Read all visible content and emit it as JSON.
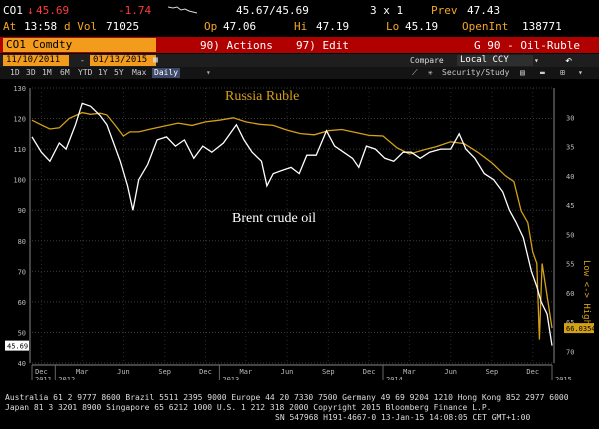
{
  "header": {
    "ticker": "CO1",
    "last": "45.69",
    "change": "-1.74",
    "time_label": "At",
    "time": "13:58",
    "vol_label": "d Vol",
    "volume": "71025",
    "bid_ask": "45.67/45.69",
    "size": "3 x 1",
    "prev_label": "Prev",
    "prev": "47.43",
    "open_label": "Op",
    "open": "47.06",
    "high_label": "Hi",
    "high": "47.19",
    "low_label": "Lo",
    "low": "45.19",
    "oi_label": "OpenInt",
    "open_interest": "138771"
  },
  "toolbar": {
    "security": "CO1 Comdty",
    "actions": "90) Actions",
    "edit": "97) Edit",
    "chart_name": "G 90 - Oil-Ruble"
  },
  "toolbar2": {
    "start_date": "11/10/2011",
    "end_date": "01/13/2015",
    "compare_label": "Compare",
    "compare_value": "Local CCY"
  },
  "timeframes": [
    "1D",
    "3D",
    "1M",
    "6M",
    "YTD",
    "1Y",
    "5Y",
    "Max",
    "Daily"
  ],
  "active_timeframe": "Daily",
  "tools": {
    "security_study": "Security/Study"
  },
  "chart_data": {
    "type": "line",
    "x_range": [
      "2011-11-10",
      "2015-01-13"
    ],
    "left_axis": {
      "ticks": [
        130,
        120,
        110,
        100,
        90,
        80,
        70,
        60,
        50,
        40
      ],
      "range": [
        40,
        130
      ]
    },
    "right_axis": {
      "label": "Low <-> High",
      "inverted": true,
      "ticks": [
        30,
        35,
        40,
        45,
        50,
        55,
        60,
        65,
        70
      ],
      "range": [
        25,
        72
      ]
    },
    "x_ticks_month": [
      "Dec",
      "Mar",
      "Jun",
      "Sep",
      "Dec",
      "Mar",
      "Jun",
      "Sep",
      "Dec",
      "Mar",
      "Jun",
      "Sep",
      "Dec"
    ],
    "x_ticks_year": [
      "2011",
      "2012",
      "2013",
      "2014",
      "2015"
    ],
    "series": [
      {
        "name": "Brent crude oil",
        "color": "#ffffff",
        "axis": "left",
        "last_value": "45.69",
        "values": [
          [
            "2011-11-10",
            114
          ],
          [
            "2011-12-01",
            109
          ],
          [
            "2011-12-20",
            106
          ],
          [
            "2012-01-10",
            112
          ],
          [
            "2012-01-25",
            110
          ],
          [
            "2012-02-15",
            118
          ],
          [
            "2012-03-01",
            125
          ],
          [
            "2012-03-20",
            124
          ],
          [
            "2012-04-10",
            121
          ],
          [
            "2012-04-25",
            118
          ],
          [
            "2012-05-10",
            112
          ],
          [
            "2012-05-25",
            106
          ],
          [
            "2012-06-10",
            98
          ],
          [
            "2012-06-22",
            90
          ],
          [
            "2012-07-05",
            100
          ],
          [
            "2012-07-25",
            105
          ],
          [
            "2012-08-15",
            113
          ],
          [
            "2012-09-05",
            114
          ],
          [
            "2012-09-25",
            111
          ],
          [
            "2012-10-15",
            113
          ],
          [
            "2012-11-05",
            107
          ],
          [
            "2012-11-25",
            111
          ],
          [
            "2012-12-15",
            109
          ],
          [
            "2013-01-10",
            112
          ],
          [
            "2013-02-08",
            118
          ],
          [
            "2013-02-25",
            113
          ],
          [
            "2013-03-15",
            109
          ],
          [
            "2013-04-05",
            106
          ],
          [
            "2013-04-17",
            98
          ],
          [
            "2013-05-01",
            102
          ],
          [
            "2013-05-20",
            103
          ],
          [
            "2013-06-10",
            104
          ],
          [
            "2013-06-28",
            102
          ],
          [
            "2013-07-15",
            108
          ],
          [
            "2013-08-05",
            108
          ],
          [
            "2013-08-28",
            116
          ],
          [
            "2013-09-15",
            111
          ],
          [
            "2013-10-05",
            109
          ],
          [
            "2013-10-25",
            107
          ],
          [
            "2013-11-08",
            104
          ],
          [
            "2013-11-25",
            111
          ],
          [
            "2013-12-15",
            110
          ],
          [
            "2014-01-05",
            107
          ],
          [
            "2014-01-25",
            106
          ],
          [
            "2014-02-15",
            109
          ],
          [
            "2014-03-05",
            109
          ],
          [
            "2014-03-25",
            107
          ],
          [
            "2014-04-15",
            109
          ],
          [
            "2014-05-10",
            110
          ],
          [
            "2014-06-01",
            110
          ],
          [
            "2014-06-20",
            115
          ],
          [
            "2014-07-05",
            110
          ],
          [
            "2014-07-25",
            107
          ],
          [
            "2014-08-15",
            102
          ],
          [
            "2014-09-05",
            100
          ],
          [
            "2014-09-25",
            96
          ],
          [
            "2014-10-10",
            90
          ],
          [
            "2014-10-25",
            86
          ],
          [
            "2014-11-10",
            81
          ],
          [
            "2014-11-28",
            70
          ],
          [
            "2014-12-10",
            65
          ],
          [
            "2014-12-20",
            60
          ],
          [
            "2015-01-02",
            56
          ],
          [
            "2015-01-13",
            45.69
          ]
        ]
      },
      {
        "name": "Russia Ruble",
        "color": "#d4a017",
        "axis": "right",
        "last_value": "66.0354",
        "values": [
          [
            "2011-11-10",
            30.5
          ],
          [
            "2011-12-01",
            31.3
          ],
          [
            "2011-12-20",
            32.0
          ],
          [
            "2012-01-10",
            31.8
          ],
          [
            "2012-02-01",
            30.2
          ],
          [
            "2012-03-01",
            29.2
          ],
          [
            "2012-03-20",
            29.5
          ],
          [
            "2012-04-10",
            29.3
          ],
          [
            "2012-04-25",
            29.6
          ],
          [
            "2012-05-15",
            31.5
          ],
          [
            "2012-06-01",
            33.2
          ],
          [
            "2012-06-15",
            32.5
          ],
          [
            "2012-07-05",
            32.5
          ],
          [
            "2012-08-01",
            32.0
          ],
          [
            "2012-09-01",
            31.5
          ],
          [
            "2012-10-01",
            31.0
          ],
          [
            "2012-11-01",
            31.4
          ],
          [
            "2012-12-01",
            30.8
          ],
          [
            "2013-01-01",
            30.5
          ],
          [
            "2013-02-01",
            30.1
          ],
          [
            "2013-03-01",
            30.8
          ],
          [
            "2013-04-01",
            31.2
          ],
          [
            "2013-05-01",
            31.4
          ],
          [
            "2013-06-01",
            32.2
          ],
          [
            "2013-07-01",
            32.8
          ],
          [
            "2013-08-01",
            33.0
          ],
          [
            "2013-09-01",
            32.3
          ],
          [
            "2013-10-01",
            32.1
          ],
          [
            "2013-11-01",
            32.6
          ],
          [
            "2013-12-01",
            33.1
          ],
          [
            "2014-01-01",
            33.2
          ],
          [
            "2014-02-01",
            35.2
          ],
          [
            "2014-03-01",
            36.3
          ],
          [
            "2014-04-01",
            35.6
          ],
          [
            "2014-05-01",
            35.0
          ],
          [
            "2014-06-01",
            34.2
          ],
          [
            "2014-07-01",
            34.5
          ],
          [
            "2014-08-01",
            36.0
          ],
          [
            "2014-09-01",
            37.8
          ],
          [
            "2014-10-01",
            40.0
          ],
          [
            "2014-10-20",
            41.0
          ],
          [
            "2014-11-05",
            46.0
          ],
          [
            "2014-11-20",
            48.0
          ],
          [
            "2014-12-01",
            53.0
          ],
          [
            "2014-12-10",
            55.0
          ],
          [
            "2014-12-16",
            68.0
          ],
          [
            "2014-12-22",
            55.0
          ],
          [
            "2015-01-05",
            62.0
          ],
          [
            "2015-01-13",
            66.0354
          ]
        ]
      }
    ]
  },
  "footer": {
    "line1": "Australia 61 2 9777 8600 Brazil 5511 2395 9000 Europe 44 20 7330 7500 Germany 49 69 9204 1210 Hong Kong 852 2977 6000",
    "line2": "Japan 81 3 3201 8900          Singapore 65 6212 1000          U.S. 1 212 318 2000          Copyright 2015 Bloomberg Finance L.P.",
    "line3": "SN 547968 H191-4667-0 13-Jan-15 14:08:05 CET  GMT+1:00"
  }
}
